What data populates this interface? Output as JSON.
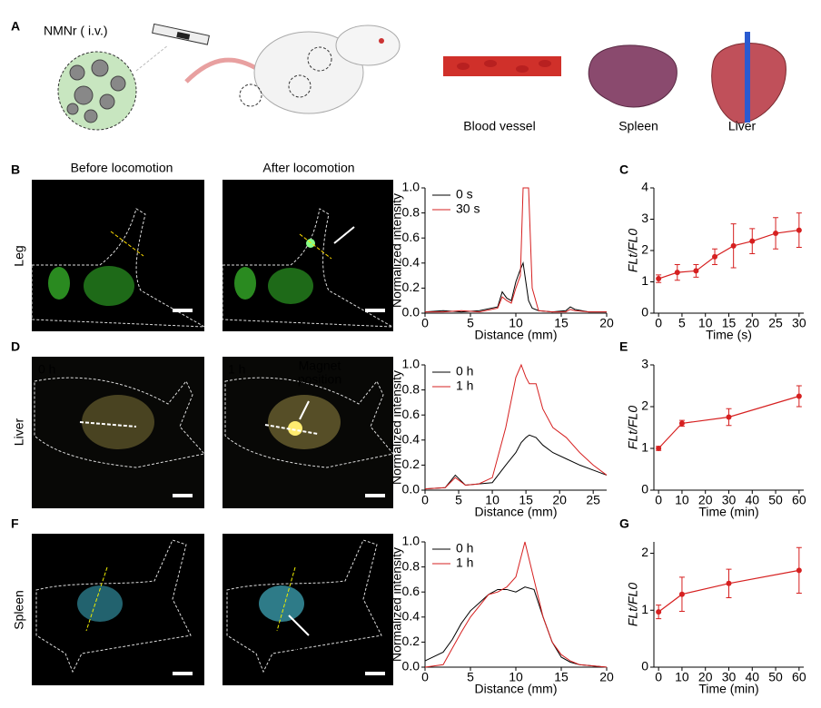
{
  "figure": {
    "panel_labels": [
      "A",
      "B",
      "C",
      "D",
      "E",
      "F",
      "G"
    ],
    "injection": "NMNr ( i.v.)",
    "organ_labels": [
      "Blood vessel",
      "Spleen",
      "Liver"
    ],
    "column_titles": [
      "Before locomotion",
      "After locomotion"
    ],
    "row_labels": [
      "Leg",
      "Liver",
      "Spleen"
    ],
    "timestamps": [
      "0 s",
      "30 s",
      "0 h",
      "1 h",
      "0 h",
      "1 h"
    ],
    "magnet_labels": [
      [
        "Magnet",
        "position"
      ],
      [
        "Magnet",
        "position"
      ],
      [
        "Magnet",
        "position"
      ]
    ],
    "scale_bar": "10 mm"
  },
  "chart_data": [
    {
      "type": "line",
      "xlabel": "Distance (mm)",
      "ylabel": "Normalized intensity",
      "x": [
        0,
        2,
        4,
        6,
        8,
        8.5,
        9,
        9.5,
        10,
        10.5,
        10.8,
        11.1,
        11.4,
        11.8,
        12.5,
        14,
        15.5,
        16,
        16.5,
        18,
        20
      ],
      "series": [
        {
          "name": "0 s",
          "color": "#000000",
          "values": [
            0.01,
            0.02,
            0.01,
            0.02,
            0.05,
            0.17,
            0.12,
            0.1,
            0.25,
            0.35,
            0.4,
            0.25,
            0.1,
            0.04,
            0.02,
            0.01,
            0.02,
            0.05,
            0.03,
            0.01,
            0.01
          ]
        },
        {
          "name": "30 s",
          "color": "#d62020",
          "values": [
            0.01,
            0.01,
            0.02,
            0.01,
            0.04,
            0.13,
            0.1,
            0.08,
            0.2,
            0.3,
            1.0,
            1.0,
            1.0,
            0.2,
            0.02,
            0.01,
            0.01,
            0.03,
            0.02,
            0.01,
            0.01
          ]
        }
      ],
      "xlim": [
        0,
        20
      ],
      "xticks": [
        0,
        5,
        10,
        15,
        20
      ],
      "ylim": [
        0,
        1.0
      ],
      "yticks": [
        {
          "value": 0,
          "label": "0.0"
        },
        0.2,
        0.4,
        0.6,
        0.8,
        {
          "value": 1.0,
          "label": "1.0"
        }
      ],
      "legend": "upper left"
    },
    {
      "type": "errorbar",
      "xlabel": "Time (s)",
      "ylabel": "FLt/FL0",
      "x": [
        0,
        4,
        8,
        12,
        16,
        20,
        25,
        30
      ],
      "values": [
        1.1,
        1.3,
        1.35,
        1.8,
        2.15,
        2.3,
        2.55,
        2.65
      ],
      "errors": [
        0.12,
        0.25,
        0.2,
        0.25,
        0.7,
        0.4,
        0.5,
        0.55
      ],
      "color": "#d62020",
      "xlim": [
        -1,
        31
      ],
      "xticks": [
        0,
        5,
        10,
        15,
        20,
        25,
        30
      ],
      "ylim": [
        0,
        4
      ],
      "yticks": [
        0,
        1,
        2,
        3,
        4
      ]
    },
    {
      "type": "line",
      "xlabel": "Distance (mm)",
      "ylabel": "Normalized intensity",
      "x": [
        0,
        3,
        4.5,
        6,
        8,
        10,
        12,
        13.5,
        14.3,
        15,
        15.5,
        16.5,
        17.5,
        19,
        21,
        23,
        25,
        27
      ],
      "series": [
        {
          "name": "0 h",
          "color": "#000000",
          "values": [
            0.01,
            0.02,
            0.12,
            0.04,
            0.05,
            0.06,
            0.2,
            0.3,
            0.38,
            0.42,
            0.44,
            0.42,
            0.36,
            0.3,
            0.25,
            0.2,
            0.16,
            0.12
          ]
        },
        {
          "name": "1 h",
          "color": "#d62020",
          "values": [
            0.01,
            0.02,
            0.1,
            0.04,
            0.05,
            0.1,
            0.5,
            0.9,
            1.0,
            0.9,
            0.85,
            0.85,
            0.65,
            0.5,
            0.42,
            0.3,
            0.2,
            0.12
          ]
        }
      ],
      "xlim": [
        0,
        27
      ],
      "xticks": [
        0,
        5,
        10,
        15,
        20,
        25
      ],
      "ylim": [
        0,
        1.0
      ],
      "yticks": [
        {
          "value": 0,
          "label": "0.0"
        },
        0.2,
        0.4,
        0.6,
        0.8,
        {
          "value": 1.0,
          "label": "1.0"
        }
      ],
      "legend": "upper left"
    },
    {
      "type": "errorbar",
      "xlabel": "Time (min)",
      "ylabel": "FLt/FL0",
      "x": [
        0,
        10,
        30,
        60
      ],
      "values": [
        1.0,
        1.6,
        1.75,
        2.25
      ],
      "errors": [
        0.05,
        0.07,
        0.2,
        0.25
      ],
      "color": "#d62020",
      "xlim": [
        -2,
        62
      ],
      "xticks": [
        0,
        10,
        20,
        30,
        40,
        50,
        60
      ],
      "ylim": [
        0,
        3
      ],
      "yticks": [
        0,
        1,
        2,
        3
      ]
    },
    {
      "type": "line",
      "xlabel": "Distance (mm)",
      "ylabel": "Normalized intensity",
      "x": [
        0,
        2,
        3,
        4,
        5,
        7,
        8,
        9,
        10,
        11,
        12,
        13,
        14,
        15,
        16,
        17,
        20
      ],
      "series": [
        {
          "name": "0 h",
          "color": "#000000",
          "values": [
            0.05,
            0.12,
            0.22,
            0.35,
            0.45,
            0.58,
            0.62,
            0.62,
            0.6,
            0.64,
            0.62,
            0.4,
            0.2,
            0.08,
            0.04,
            0.02,
            0.0
          ]
        },
        {
          "name": "1 h",
          "color": "#d62020",
          "values": [
            0.0,
            0.02,
            0.15,
            0.28,
            0.4,
            0.58,
            0.6,
            0.64,
            0.72,
            1.0,
            0.7,
            0.4,
            0.2,
            0.1,
            0.05,
            0.02,
            0.0
          ]
        }
      ],
      "xlim": [
        0,
        20
      ],
      "xticks": [
        0,
        5,
        10,
        15,
        20
      ],
      "ylim": [
        0,
        1.0
      ],
      "yticks": [
        {
          "value": 0,
          "label": "0.0"
        },
        0.2,
        0.4,
        0.6,
        0.8,
        {
          "value": 1.0,
          "label": "1.0"
        }
      ],
      "legend": "upper left"
    },
    {
      "type": "errorbar",
      "xlabel": "Time (min)",
      "ylabel": "FLt/FL0",
      "x": [
        0,
        10,
        30,
        60
      ],
      "values": [
        0.97,
        1.28,
        1.47,
        1.7
      ],
      "errors": [
        0.12,
        0.3,
        0.25,
        0.4
      ],
      "color": "#d62020",
      "xlim": [
        -2,
        62
      ],
      "xticks": [
        0,
        10,
        20,
        30,
        40,
        50,
        60
      ],
      "ylim": [
        0,
        2.2
      ],
      "yticks": [
        0,
        1,
        2
      ]
    }
  ]
}
